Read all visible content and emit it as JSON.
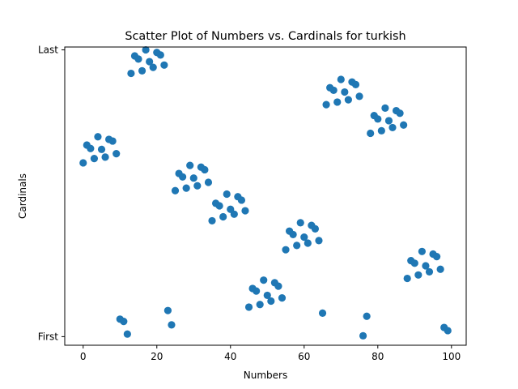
{
  "chart_data": {
    "type": "scatter",
    "title": "Scatter Plot of Numbers vs. Cardinals for turkish",
    "xlabel": "Numbers",
    "ylabel": "Cardinals",
    "xlim": [
      -5,
      104
    ],
    "ylim": [
      -3,
      101
    ],
    "xticks": [
      0,
      20,
      40,
      60,
      80,
      100
    ],
    "yticks": [
      {
        "value": 0,
        "label": "First"
      },
      {
        "value": 100,
        "label": "Last"
      }
    ],
    "grid": false,
    "marker_color": "#1f77b4",
    "points": [
      [
        0,
        60.6
      ],
      [
        1,
        66.8
      ],
      [
        2,
        65.6
      ],
      [
        3,
        62.1
      ],
      [
        4,
        69.7
      ],
      [
        5,
        65.3
      ],
      [
        6,
        62.6
      ],
      [
        7,
        68.8
      ],
      [
        8,
        68.2
      ],
      [
        9,
        63.8
      ],
      [
        10,
        6.1
      ],
      [
        11,
        5.3
      ],
      [
        12,
        0.9
      ],
      [
        13,
        91.8
      ],
      [
        14,
        97.9
      ],
      [
        15,
        96.8
      ],
      [
        16,
        92.7
      ],
      [
        17,
        100
      ],
      [
        18,
        95.9
      ],
      [
        19,
        93.9
      ],
      [
        20,
        99.1
      ],
      [
        21,
        98.2
      ],
      [
        22,
        94.7
      ],
      [
        23,
        9.1
      ],
      [
        24,
        4.1
      ],
      [
        25,
        50.9
      ],
      [
        26,
        56.9
      ],
      [
        27,
        55.7
      ],
      [
        28,
        51.8
      ],
      [
        29,
        59.7
      ],
      [
        30,
        55.3
      ],
      [
        31,
        52.6
      ],
      [
        32,
        59.1
      ],
      [
        33,
        58.2
      ],
      [
        34,
        53.8
      ],
      [
        35,
        40.4
      ],
      [
        36,
        46.5
      ],
      [
        37,
        45.6
      ],
      [
        38,
        41.8
      ],
      [
        39,
        49.7
      ],
      [
        40,
        44.4
      ],
      [
        41,
        42.7
      ],
      [
        42,
        48.8
      ],
      [
        43,
        47.6
      ],
      [
        44,
        43.9
      ],
      [
        45,
        10.3
      ],
      [
        46,
        16.8
      ],
      [
        47,
        15.9
      ],
      [
        48,
        11.2
      ],
      [
        49,
        19.7
      ],
      [
        50,
        14.4
      ],
      [
        51,
        12.4
      ],
      [
        52,
        18.8
      ],
      [
        53,
        17.6
      ],
      [
        54,
        13.5
      ],
      [
        55,
        30.3
      ],
      [
        56,
        36.8
      ],
      [
        57,
        35.6
      ],
      [
        58,
        31.8
      ],
      [
        59,
        39.7
      ],
      [
        60,
        34.7
      ],
      [
        61,
        32.6
      ],
      [
        62,
        38.8
      ],
      [
        63,
        37.6
      ],
      [
        64,
        33.5
      ],
      [
        65,
        8.2
      ],
      [
        66,
        80.9
      ],
      [
        67,
        86.8
      ],
      [
        68,
        85.9
      ],
      [
        69,
        81.8
      ],
      [
        70,
        89.7
      ],
      [
        71,
        85.3
      ],
      [
        72,
        82.6
      ],
      [
        73,
        88.8
      ],
      [
        74,
        87.9
      ],
      [
        75,
        83.8
      ],
      [
        76,
        0.3
      ],
      [
        77,
        7.1
      ],
      [
        78,
        70.9
      ],
      [
        79,
        77.1
      ],
      [
        80,
        75.9
      ],
      [
        81,
        71.8
      ],
      [
        82,
        79.7
      ],
      [
        83,
        75.3
      ],
      [
        84,
        72.9
      ],
      [
        85,
        78.8
      ],
      [
        86,
        77.9
      ],
      [
        87,
        73.8
      ],
      [
        88,
        20.3
      ],
      [
        89,
        26.5
      ],
      [
        90,
        25.6
      ],
      [
        91,
        21.5
      ],
      [
        92,
        29.7
      ],
      [
        93,
        24.7
      ],
      [
        94,
        22.6
      ],
      [
        95,
        28.8
      ],
      [
        96,
        27.9
      ],
      [
        97,
        23.5
      ],
      [
        98,
        3.2
      ],
      [
        99,
        2.1
      ]
    ]
  }
}
